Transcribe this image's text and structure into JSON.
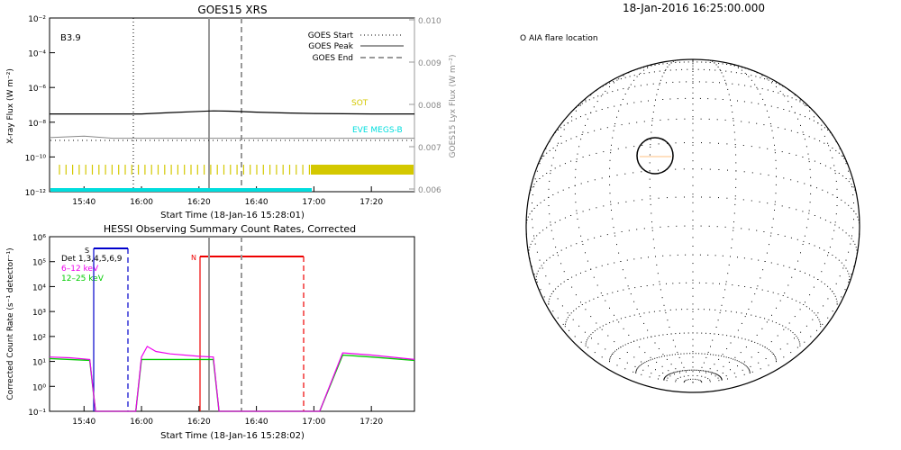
{
  "goes": {
    "title": "GOES15 XRS",
    "class_label": "B3.9",
    "ylabel_left": "X-ray Flux (W m⁻²)",
    "ylabel_right": "GOES15 Lyx Flux (W m⁻²)",
    "xlabel": "Start Time (18-Jan-16 15:28:01)",
    "legend": [
      "GOES Start",
      "GOES Peak",
      "GOES End"
    ],
    "sot_label": "SOT",
    "eve_label": "EVE MEGS-B",
    "left_ticks": [
      "10⁻²",
      "10⁻⁴",
      "10⁻⁶",
      "10⁻⁸",
      "10⁻¹⁰",
      "10⁻¹²"
    ],
    "right_ticks": [
      "0.010",
      "0.009",
      "0.008",
      "0.007",
      "0.006"
    ],
    "x_ticks": [
      "15:40",
      "16:00",
      "16:20",
      "16:40",
      "17:00",
      "17:20"
    ]
  },
  "hessi": {
    "title": "HESSI Observing Summary Count Rates, Corrected",
    "ylabel": "Corrected Count Rate (s⁻¹ detector⁻¹)",
    "xlabel": "Start Time (18-Jan-16 15:28:02)",
    "legend": [
      "Det 1,3,4,5,6,9",
      "6–12 keV",
      "12–25 keV"
    ],
    "y_ticks": [
      "10⁶",
      "10⁵",
      "10⁴",
      "10³",
      "10²",
      "10¹",
      "10⁰",
      "10⁻¹"
    ],
    "x_ticks": [
      "15:40",
      "16:00",
      "16:20",
      "16:40",
      "17:00",
      "17:20"
    ],
    "marker_s": "S",
    "marker_n": "N"
  },
  "sun": {
    "title": "18-Jan-2016 16:25:00.000",
    "legend": "O AIA flare location"
  },
  "colors": {
    "goes_long": "#000000",
    "goes_short": "#888888",
    "sot": "#d4c800",
    "eve": "#00dddd",
    "hessi_blue": "#0000cc",
    "hessi_red": "#ee0000",
    "low_energy": "#ee00ee",
    "high_energy": "#00cc00"
  },
  "chart_data": [
    {
      "type": "line",
      "title": "GOES15 XRS",
      "xlabel": "Start Time (18-Jan-16 15:28:01)",
      "ylabel": "X-ray Flux (W m⁻²)",
      "x_range": [
        "15:28",
        "17:35"
      ],
      "ylim": [
        1e-12,
        0.01
      ],
      "yscale": "log",
      "series": [
        {
          "times": [
            "15:28",
            "15:50",
            "16:00",
            "16:10",
            "16:20",
            "16:25",
            "16:32",
            "16:40",
            "16:50",
            "17:00",
            "17:20",
            "17:35"
          ],
          "values": [
            3e-08,
            3e-08,
            3e-08,
            3.6e-08,
            4.2e-08,
            4.5e-08,
            4.3e-08,
            3.8e-08,
            3.4e-08,
            3.2e-08,
            3e-08,
            3e-08
          ]
        },
        {
          "times": [
            "15:28",
            "15:40",
            "15:50",
            "16:00",
            "16:20",
            "16:40",
            "17:00",
            "17:20",
            "17:35"
          ],
          "values": [
            1.3e-09,
            1.6e-09,
            1.2e-09,
            1.2e-09,
            1.2e-09,
            1.2e-09,
            1.2e-09,
            1.2e-09,
            1.2e-09
          ]
        }
      ],
      "markers": {
        "GOES Start": "15:58",
        "GOES Peak": "16:25",
        "GOES End": "16:36"
      }
    },
    {
      "type": "line",
      "title": "HESSI Observing Summary Count Rates, Corrected",
      "xlabel": "Start Time (18-Jan-16 15:28:02)",
      "ylabel": "Corrected Count Rate (s⁻¹ detector⁻¹)",
      "x_range": [
        "15:28",
        "17:35"
      ],
      "ylim": [
        0.1,
        1000000
      ],
      "yscale": "log",
      "series": [
        {
          "name": "6–12 keV",
          "times": [
            "15:28",
            "15:35",
            "15:42",
            "15:44",
            "15:58",
            "16:00",
            "16:02",
            "16:05",
            "16:10",
            "16:20",
            "16:25",
            "16:27",
            "17:02",
            "17:10",
            "17:20",
            "17:35"
          ],
          "values": [
            15,
            14,
            12,
            0.1,
            0.1,
            15,
            40,
            25,
            20,
            16,
            15,
            0.1,
            0.1,
            22,
            18,
            12
          ]
        },
        {
          "name": "12–25 keV",
          "times": [
            "15:28",
            "15:35",
            "15:42",
            "15:44",
            "15:58",
            "16:00",
            "16:05",
            "16:10",
            "16:20",
            "16:25",
            "16:27",
            "17:02",
            "17:10",
            "17:20",
            "17:35"
          ],
          "values": [
            13,
            12,
            11,
            0.1,
            0.1,
            12,
            12,
            12,
            12,
            12,
            0.1,
            0.1,
            18,
            15,
            11
          ]
        }
      ]
    }
  ]
}
